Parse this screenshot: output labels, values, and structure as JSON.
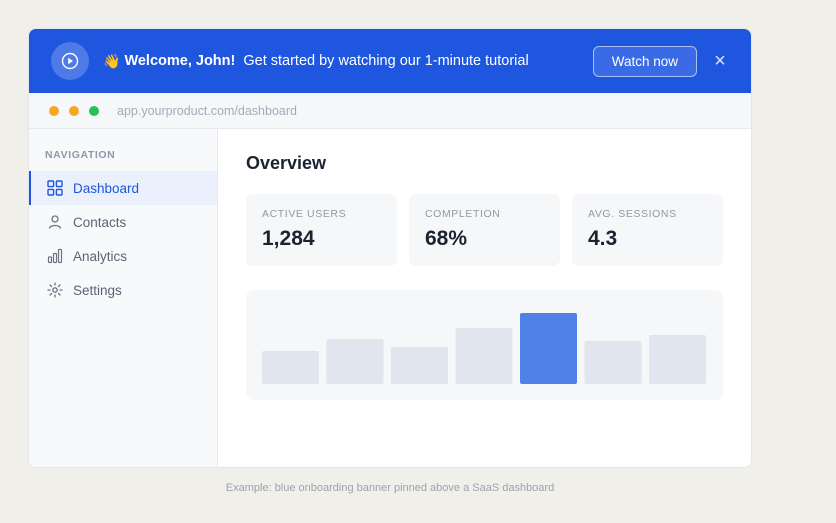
{
  "banner": {
    "wave_emoji": "👋",
    "welcome": "Welcome, John!",
    "message": "Get started by watching our 1-minute tutorial",
    "watch_label": "Watch now",
    "close_glyph": "×",
    "play_icon": "play-circle-icon",
    "color": "#1e56e0"
  },
  "browser": {
    "url": "app.yourproduct.com/dashboard",
    "dots": [
      "#f5a623",
      "#f5a623",
      "#27c15c"
    ]
  },
  "sidebar": {
    "heading": "NAVIGATION",
    "items": [
      {
        "label": "Dashboard",
        "icon": "grid-icon",
        "active": true
      },
      {
        "label": "Contacts",
        "icon": "user-icon",
        "active": false
      },
      {
        "label": "Analytics",
        "icon": "bar-chart-icon",
        "active": false
      },
      {
        "label": "Settings",
        "icon": "gear-icon",
        "active": false
      }
    ]
  },
  "main": {
    "title": "Overview",
    "stats": [
      {
        "label": "ACTIVE USERS",
        "value": "1,284"
      },
      {
        "label": "COMPLETION",
        "value": "68%"
      },
      {
        "label": "AVG. SESSIONS",
        "value": "4.3"
      }
    ]
  },
  "chart_data": {
    "type": "bar",
    "values": [
      33,
      45,
      37,
      56,
      71,
      43,
      49
    ],
    "highlight_index": 4,
    "bar_color": "#e1e6ee",
    "highlight_color": "#5081e6",
    "ylim": [
      0,
      100
    ],
    "title": "",
    "xlabel": "",
    "ylabel": ""
  },
  "caption": "Example: blue onboarding banner pinned above a SaaS dashboard"
}
